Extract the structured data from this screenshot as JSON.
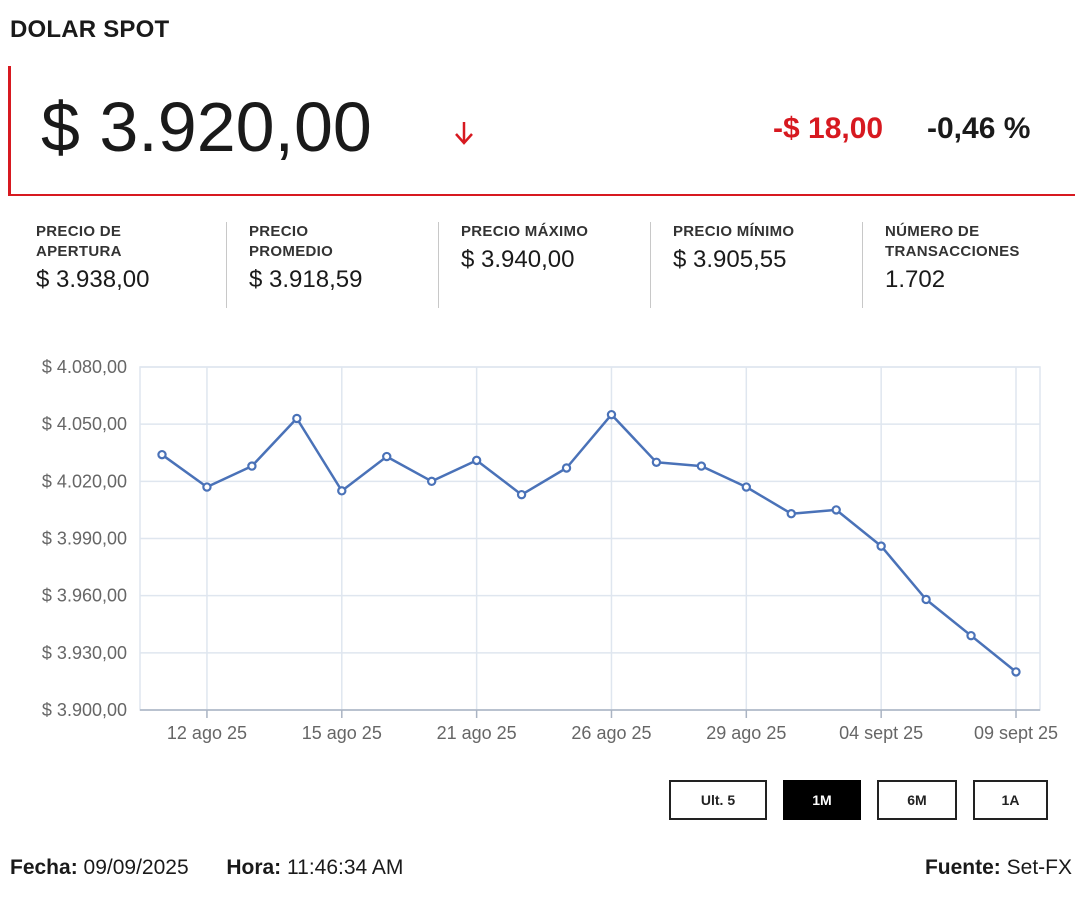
{
  "header": {
    "title": "DOLAR SPOT",
    "price": "$ 3.920,00",
    "change_abs": "-$ 18,00",
    "change_pct": "-0,46 %",
    "trend": "down",
    "down_color": "#d71920"
  },
  "stats": [
    {
      "label": "PRECIO DE\nAPERTURA",
      "value": "$ 3.938,00"
    },
    {
      "label": "PRECIO\nPROMEDIO",
      "value": "$ 3.918,59"
    },
    {
      "label": "PRECIO MÁXIMO",
      "value": "$ 3.940,00"
    },
    {
      "label": "PRECIO MÍNIMO",
      "value": "$ 3.905,55"
    },
    {
      "label": "NÚMERO DE\nTRANSACCIONES",
      "value": "1.702"
    }
  ],
  "chart_data": {
    "type": "line",
    "ylim": [
      3900,
      4080
    ],
    "yticks": [
      4080,
      4050,
      4020,
      3990,
      3960,
      3930,
      3900
    ],
    "ytick_labels": [
      "$ 4.080,00",
      "$ 4.050,00",
      "$ 4.020,00",
      "$ 3.990,00",
      "$ 3.960,00",
      "$ 3.930,00",
      "$ 3.900,00"
    ],
    "x_tick_labels": [
      "12 ago 25",
      "15 ago 25",
      "21 ago 25",
      "26 ago 25",
      "29 ago 25",
      "04 sept 25",
      "09 sept 25"
    ],
    "x_tick_indices": [
      1,
      4,
      7,
      10,
      13,
      16,
      19
    ],
    "series": [
      {
        "values": [
          4034,
          4017,
          4028,
          4053,
          4015,
          4033,
          4020,
          4031,
          4013,
          4027,
          4055,
          4030,
          4028,
          4017,
          4003,
          4005,
          3986,
          3958,
          3939,
          3920
        ]
      }
    ],
    "line_color": "#4a72b8",
    "grid": true
  },
  "range_buttons": [
    {
      "label": "Ult. 5",
      "active": false
    },
    {
      "label": "1M",
      "active": true
    },
    {
      "label": "6M",
      "active": false
    },
    {
      "label": "1A",
      "active": false
    }
  ],
  "footer": {
    "fecha_label": "Fecha:",
    "fecha_value": "09/09/2025",
    "hora_label": "Hora:",
    "hora_value": "11:46:34 AM",
    "fuente_label": "Fuente:",
    "fuente_value": "Set-FX"
  }
}
